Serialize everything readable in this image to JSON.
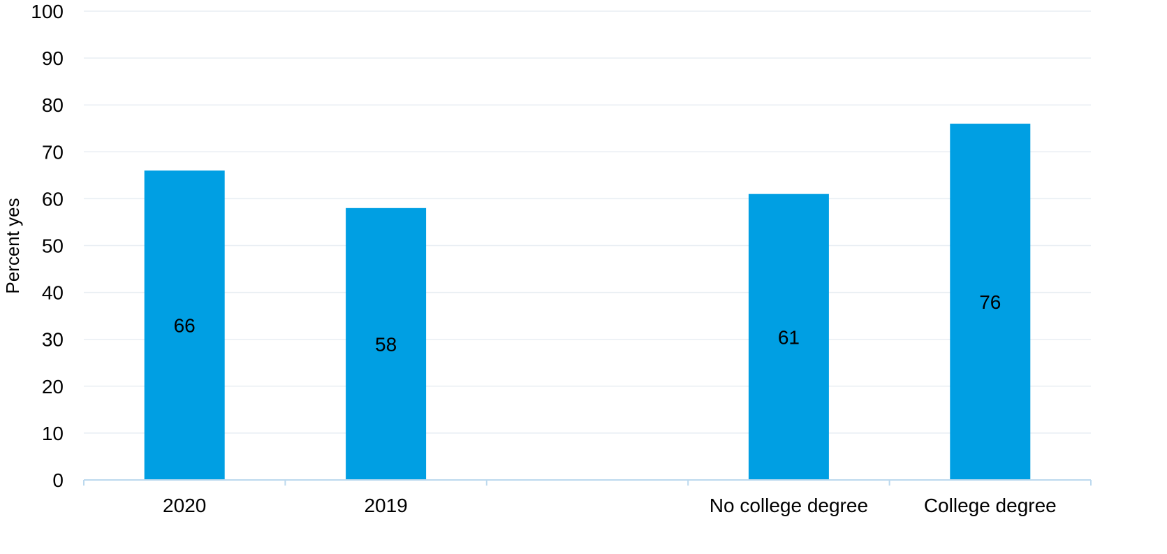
{
  "chart_data": {
    "type": "bar",
    "categories": [
      "2020",
      "2019",
      "",
      "No college degree",
      "College degree"
    ],
    "values": [
      66,
      58,
      null,
      61,
      76
    ],
    "data_labels": [
      "66",
      "58",
      "",
      "61",
      "76"
    ],
    "ylabel": "Percent yes",
    "xlabel": "",
    "ylim": [
      0,
      100
    ],
    "yticks": [
      "0",
      "10",
      "20",
      "30",
      "40",
      "50",
      "60",
      "70",
      "80",
      "90",
      "100"
    ],
    "grid": true,
    "legend": "none",
    "colors": {
      "bar": "#009FE3",
      "grid": "#E8EEF3",
      "axis": "#BCD9EE"
    }
  }
}
